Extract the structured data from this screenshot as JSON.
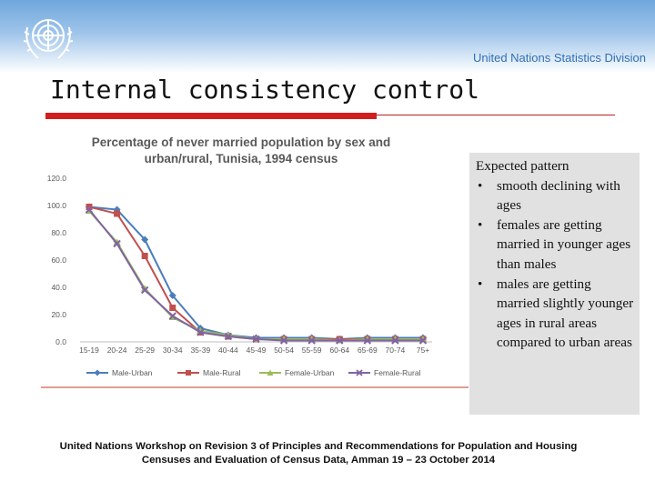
{
  "header": {
    "org_name": "United Nations Statistics Division",
    "logo_icon": "un-emblem-icon",
    "band_color": "#6fa7dd"
  },
  "slide": {
    "title": "Internal consistency control",
    "accent_color": "#d11f1f"
  },
  "chart_data": {
    "type": "line",
    "title_line1": "Percentage of never married population by sex and",
    "title_line2": "urban/rural, Tunisia, 1994 census",
    "categories": [
      "15-19",
      "20-24",
      "25-29",
      "30-34",
      "35-39",
      "40-44",
      "45-49",
      "50-54",
      "55-59",
      "60-64",
      "65-69",
      "70-74",
      "75+"
    ],
    "ylim": [
      0,
      120
    ],
    "yticks": [
      "0.0",
      "20.0",
      "40.0",
      "60.0",
      "80.0",
      "100.0",
      "120.0"
    ],
    "series": [
      {
        "name": "Male-Urban",
        "color": "#4a7ebb",
        "marker": "diamond",
        "values": [
          99,
          97,
          75,
          34,
          10,
          5,
          3,
          3,
          3,
          2,
          3,
          3,
          3
        ]
      },
      {
        "name": "Male-Rural",
        "color": "#c0504d",
        "marker": "square",
        "values": [
          99,
          94,
          63,
          25,
          7,
          4,
          2,
          2,
          2,
          2,
          2,
          2,
          2
        ]
      },
      {
        "name": "Female-Urban",
        "color": "#9bbb59",
        "marker": "triangle",
        "values": [
          96,
          73,
          39,
          18,
          8,
          5,
          2,
          2,
          2,
          1,
          2,
          2,
          2
        ]
      },
      {
        "name": "Female-Rural",
        "color": "#8064a2",
        "marker": "x",
        "values": [
          97,
          72,
          38,
          19,
          7,
          4,
          2,
          1,
          1,
          1,
          1,
          1,
          1
        ]
      }
    ]
  },
  "sidebar_text": {
    "heading": "Expected pattern",
    "bullet": "•",
    "bullets": [
      "smooth declining with ages",
      "females are getting married in younger ages than males",
      "males are getting married slightly younger ages in rural areas compared to urban areas"
    ]
  },
  "footer": {
    "line1": "United Nations Workshop on  Revision 3 of Principles and Recommendations for Population and Housing",
    "line2": "Censuses and Evaluation of Census Data, Amman 19 – 23 October 2014"
  }
}
